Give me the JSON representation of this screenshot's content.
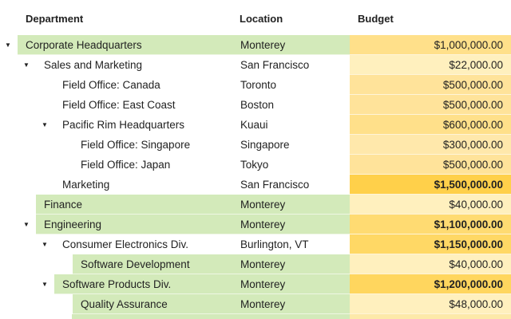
{
  "header": {
    "department": "Department",
    "location": "Location",
    "budget": "Budget"
  },
  "colors": {
    "highlight_green": "#d3eaba",
    "budget_light": "#fff0be",
    "budget_mid": "#ffe08a",
    "budget_strong": "#ffd04a"
  },
  "icons": {
    "expanded": "caret-down-icon"
  },
  "rows": [
    {
      "department": "Corporate Headquarters",
      "location": "Monterey",
      "budget": "$1,000,000.00",
      "level": 0,
      "expanded": true,
      "dept_highlight": true,
      "loc_highlight": true,
      "budget_bold": false,
      "budget_color": "#ffe08a"
    },
    {
      "department": "Sales and Marketing",
      "location": "San Francisco",
      "budget": "$22,000.00",
      "level": 1,
      "expanded": true,
      "dept_highlight": false,
      "loc_highlight": false,
      "budget_bold": false,
      "budget_color": "#fff0be"
    },
    {
      "department": "Field Office: Canada",
      "location": "Toronto",
      "budget": "$500,000.00",
      "level": 2,
      "expanded": false,
      "dept_highlight": false,
      "loc_highlight": false,
      "budget_bold": false,
      "budget_color": "#ffe39a"
    },
    {
      "department": "Field Office: East Coast",
      "location": "Boston",
      "budget": "$500,000.00",
      "level": 2,
      "expanded": false,
      "dept_highlight": false,
      "loc_highlight": false,
      "budget_bold": false,
      "budget_color": "#ffe39a"
    },
    {
      "department": "Pacific Rim Headquarters",
      "location": "Kuaui",
      "budget": "$600,000.00",
      "level": 2,
      "expanded": true,
      "dept_highlight": false,
      "loc_highlight": false,
      "budget_bold": false,
      "budget_color": "#ffe08a"
    },
    {
      "department": "Field Office: Singapore",
      "location": "Singapore",
      "budget": "$300,000.00",
      "level": 3,
      "expanded": false,
      "dept_highlight": false,
      "loc_highlight": false,
      "budget_bold": false,
      "budget_color": "#ffe8ab"
    },
    {
      "department": "Field Office: Japan",
      "location": "Tokyo",
      "budget": "$500,000.00",
      "level": 3,
      "expanded": false,
      "dept_highlight": false,
      "loc_highlight": false,
      "budget_bold": false,
      "budget_color": "#ffe39a"
    },
    {
      "department": "Marketing",
      "location": "San Francisco",
      "budget": "$1,500,000.00",
      "level": 2,
      "expanded": false,
      "dept_highlight": false,
      "loc_highlight": false,
      "budget_bold": true,
      "budget_color": "#ffd04a"
    },
    {
      "department": "Finance",
      "location": "Monterey",
      "budget": "$40,000.00",
      "level": 1,
      "expanded": false,
      "dept_highlight": true,
      "loc_highlight": true,
      "budget_bold": false,
      "budget_color": "#fff0be"
    },
    {
      "department": "Engineering",
      "location": "Monterey",
      "budget": "$1,100,000.00",
      "level": 1,
      "expanded": true,
      "dept_highlight": true,
      "loc_highlight": true,
      "budget_bold": true,
      "budget_color": "#ffdb72"
    },
    {
      "department": "Consumer Electronics Div.",
      "location": "Burlington, VT",
      "budget": "$1,150,000.00",
      "level": 2,
      "expanded": true,
      "dept_highlight": false,
      "loc_highlight": false,
      "budget_bold": true,
      "budget_color": "#ffd865"
    },
    {
      "department": "Software Development",
      "location": "Monterey",
      "budget": "$40,000.00",
      "level": 3,
      "expanded": false,
      "dept_highlight": true,
      "loc_highlight": true,
      "budget_bold": false,
      "budget_color": "#fff0be"
    },
    {
      "department": "Software Products Div.",
      "location": "Monterey",
      "budget": "$1,200,000.00",
      "level": 2,
      "expanded": true,
      "dept_highlight": true,
      "loc_highlight": true,
      "budget_bold": true,
      "budget_color": "#ffd65e"
    },
    {
      "department": "Quality Assurance",
      "location": "Monterey",
      "budget": "$48,000.00",
      "level": 3,
      "expanded": false,
      "dept_highlight": true,
      "loc_highlight": true,
      "budget_bold": false,
      "budget_color": "#fff0be"
    }
  ]
}
